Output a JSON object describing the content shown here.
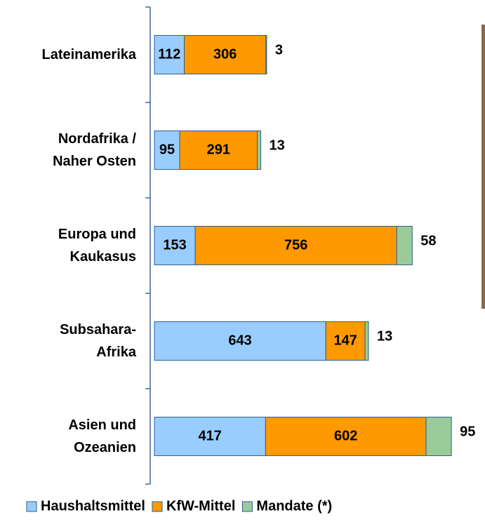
{
  "chart_data": {
    "type": "stacked-bar-horizontal",
    "categories": [
      "Lateinamerika",
      "Nordafrika /\nNaher Osten",
      "Europa und\nKaukasus",
      "Subsahara-\nAfrika",
      "Asien und\nOzeanien"
    ],
    "series": [
      {
        "name": "Haushaltsmittel",
        "color": "#99ccff",
        "values": [
          112,
          95,
          153,
          643,
          417
        ]
      },
      {
        "name": "KfW-Mittel",
        "color": "#ff9900",
        "values": [
          306,
          291,
          756,
          147,
          602
        ]
      },
      {
        "name": "Mandate (*)",
        "color": "#99cc99",
        "values": [
          3,
          13,
          58,
          13,
          95
        ]
      }
    ],
    "xlim": [
      0,
      1240
    ]
  }
}
